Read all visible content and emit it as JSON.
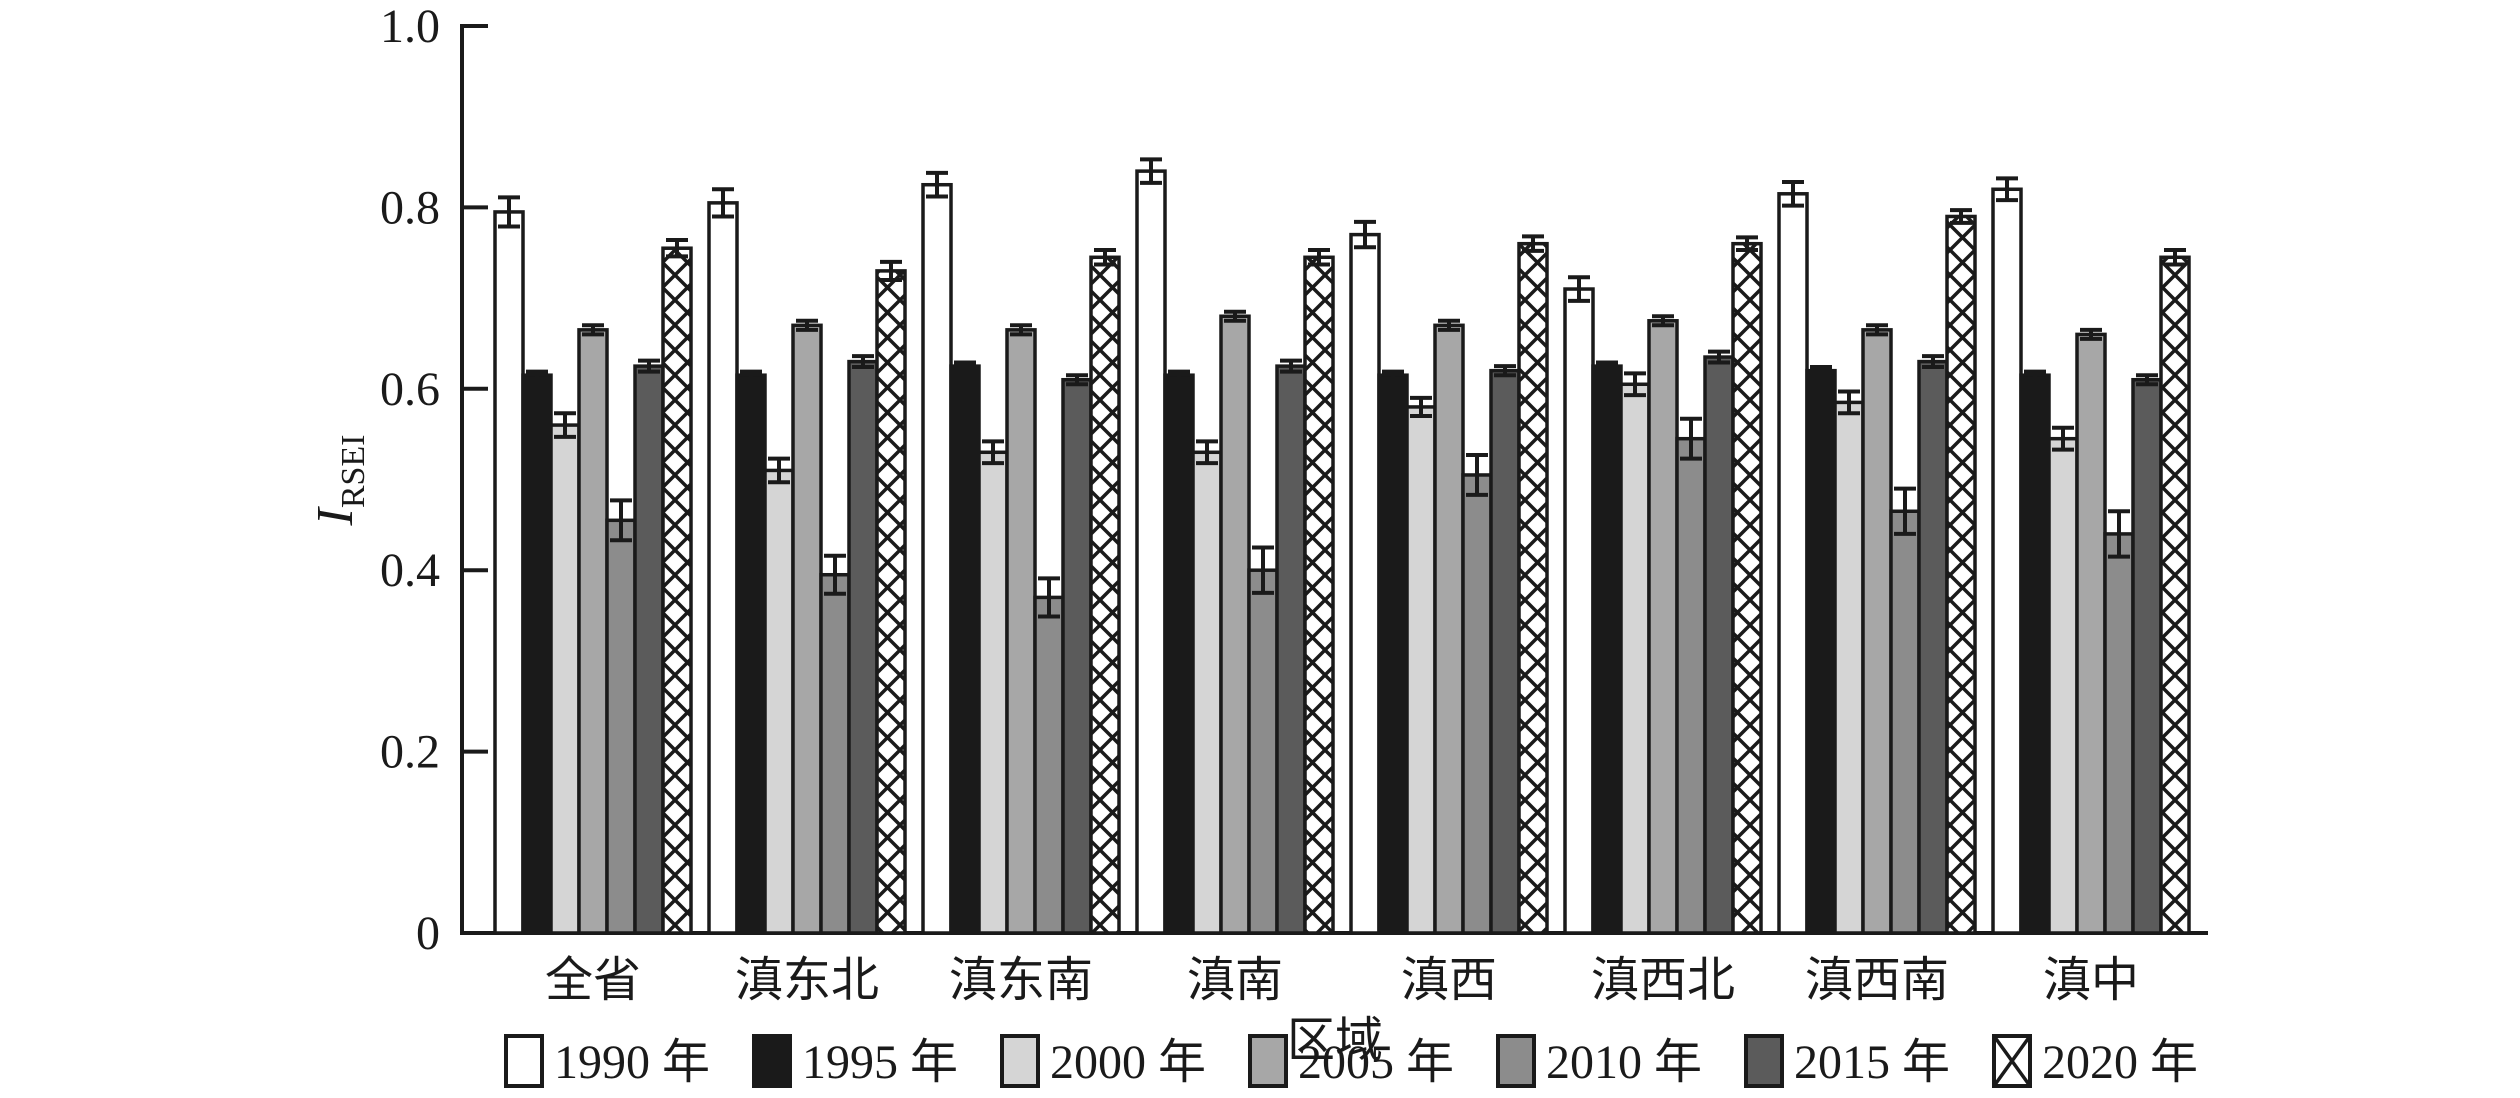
{
  "page": {
    "background": "#ffffff"
  },
  "chart_data": {
    "type": "bar",
    "title": "",
    "xlabel": "区域",
    "ylabel": "I_RSEI",
    "ylabel_main": "I",
    "ylabel_sub": "RSEI",
    "ylim": [
      0,
      1.0
    ],
    "yticks": [
      0,
      0.2,
      0.4,
      0.6,
      0.8,
      1.0
    ],
    "ytick_labels": [
      "0",
      "0.2",
      "0.4",
      "0.6",
      "0.8",
      "1.0"
    ],
    "grid": false,
    "legend_position": "bottom",
    "error_bars": true,
    "categories": [
      "全省",
      "滇东北",
      "滇东南",
      "滇南",
      "滇西",
      "滇西北",
      "滇西南",
      "滇中"
    ],
    "series": [
      {
        "name": "1990 年",
        "fill": "#ffffff",
        "pattern": "none",
        "values": [
          0.795,
          0.805,
          0.825,
          0.84,
          0.77,
          0.71,
          0.815,
          0.82
        ],
        "errors": [
          0.016,
          0.015,
          0.013,
          0.013,
          0.014,
          0.013,
          0.013,
          0.012
        ]
      },
      {
        "name": "1995 年",
        "fill": "#1a1a1a",
        "pattern": "none",
        "values": [
          0.615,
          0.615,
          0.625,
          0.615,
          0.615,
          0.625,
          0.62,
          0.615
        ],
        "errors": [
          0.004,
          0.004,
          0.004,
          0.004,
          0.004,
          0.004,
          0.004,
          0.004
        ]
      },
      {
        "name": "2000 年",
        "fill": "#d5d5d5",
        "pattern": "none",
        "values": [
          0.56,
          0.51,
          0.53,
          0.53,
          0.58,
          0.605,
          0.585,
          0.545
        ],
        "errors": [
          0.013,
          0.013,
          0.012,
          0.012,
          0.01,
          0.012,
          0.012,
          0.012
        ]
      },
      {
        "name": "2005 年",
        "fill": "#a7a7a7",
        "pattern": "none",
        "values": [
          0.665,
          0.67,
          0.665,
          0.68,
          0.67,
          0.675,
          0.665,
          0.66
        ],
        "errors": [
          0.005,
          0.005,
          0.005,
          0.005,
          0.005,
          0.005,
          0.005,
          0.005
        ]
      },
      {
        "name": "2010 年",
        "fill": "#8c8c8c",
        "pattern": "none",
        "values": [
          0.455,
          0.395,
          0.37,
          0.4,
          0.505,
          0.545,
          0.465,
          0.44
        ],
        "errors": [
          0.022,
          0.021,
          0.021,
          0.025,
          0.022,
          0.022,
          0.025,
          0.025
        ]
      },
      {
        "name": "2015 年",
        "fill": "#5b5b5b",
        "pattern": "none",
        "values": [
          0.625,
          0.63,
          0.61,
          0.625,
          0.62,
          0.635,
          0.63,
          0.61
        ],
        "errors": [
          0.006,
          0.006,
          0.005,
          0.006,
          0.005,
          0.006,
          0.006,
          0.005
        ]
      },
      {
        "name": "2020 年",
        "fill": "#ffffff",
        "pattern": "crosshatch",
        "values": [
          0.755,
          0.73,
          0.745,
          0.745,
          0.76,
          0.76,
          0.79,
          0.745
        ],
        "errors": [
          0.009,
          0.01,
          0.008,
          0.008,
          0.008,
          0.007,
          0.007,
          0.008
        ]
      }
    ],
    "colors": {
      "axis": "#1a1a1a",
      "bar_outline": "#1a1a1a",
      "error_bar": "#1a1a1a"
    }
  }
}
